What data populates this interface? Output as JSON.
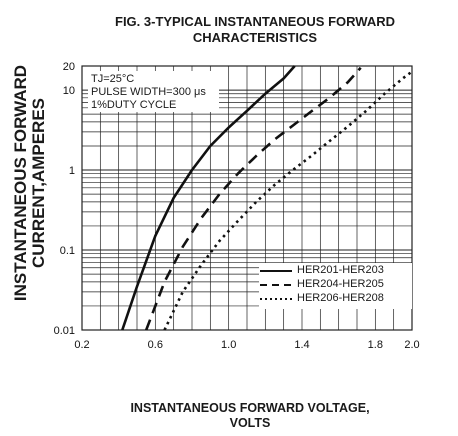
{
  "chart_data": {
    "type": "line",
    "title": "FIG. 3-TYPICAL INSTANTANEOUS FORWARD",
    "title_line2": "CHARACTERISTICS",
    "ylabel": "INSTANTANEOUS FORWARD",
    "ylabel_line2": "CURRENT,AMPERES",
    "xlabel": "INSTANTANEOUS FORWARD VOLTAGE,",
    "xlabel_line2": "VOLTS",
    "xlim": [
      0.2,
      2.0
    ],
    "ylim": [
      0.01,
      20
    ],
    "yscale": "log",
    "grid": true,
    "legend_position": "bottom-right",
    "xticks": [
      0.2,
      0.6,
      1.0,
      1.4,
      1.8,
      2.0
    ],
    "xtick_labels": [
      "0.2",
      "0.6",
      "1.0",
      "1.4",
      "1.8",
      "2.0"
    ],
    "yticks": [
      0.01,
      0.1,
      1,
      10,
      20
    ],
    "ytick_labels": [
      "0.01",
      "0.1",
      "1",
      "10",
      "20"
    ],
    "conditions": [
      "TJ=25°C",
      "PULSE WIDTH=300 μs",
      "1%DUTY CYCLE"
    ],
    "series": [
      {
        "name": "HER201-HER203",
        "style": "solid",
        "x": [
          0.42,
          0.5,
          0.6,
          0.7,
          0.8,
          0.9,
          1.0,
          1.1,
          1.2,
          1.3,
          1.36
        ],
        "y": [
          0.01,
          0.035,
          0.15,
          0.45,
          1.0,
          2.0,
          3.4,
          5.5,
          9.0,
          14,
          20
        ]
      },
      {
        "name": "HER204-HER205",
        "style": "dashed",
        "x": [
          0.55,
          0.65,
          0.75,
          0.85,
          0.95,
          1.05,
          1.15,
          1.25,
          1.35,
          1.45,
          1.55,
          1.65,
          1.72
        ],
        "y": [
          0.01,
          0.04,
          0.11,
          0.25,
          0.5,
          0.9,
          1.5,
          2.4,
          3.6,
          5.4,
          8.0,
          12.5,
          19
        ]
      },
      {
        "name": "HER206-HER208",
        "style": "dotted",
        "x": [
          0.65,
          0.75,
          0.85,
          0.95,
          1.05,
          1.15,
          1.25,
          1.35,
          1.45,
          1.55,
          1.65,
          1.75,
          1.85,
          1.95,
          2.0
        ],
        "y": [
          0.01,
          0.03,
          0.065,
          0.13,
          0.23,
          0.4,
          0.65,
          1.0,
          1.5,
          2.3,
          3.5,
          5.5,
          9.0,
          14,
          17
        ]
      }
    ],
    "colors": {
      "line": "#111111",
      "grid": "#222222",
      "background": "#ffffff"
    }
  }
}
